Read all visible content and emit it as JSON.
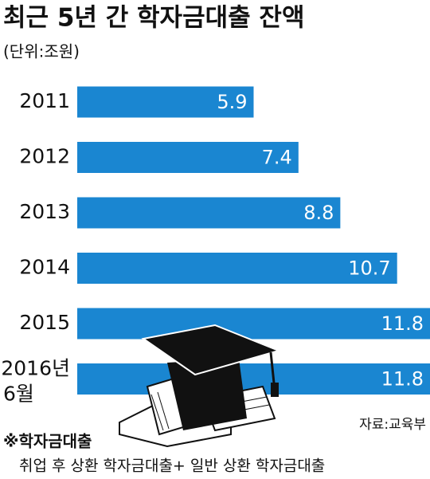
{
  "chart_data": {
    "type": "bar",
    "orientation": "horizontal",
    "title": "최근 5년 간 학자금대출 잔액",
    "subtitle": "(단위:조원)",
    "categories": [
      "2011",
      "2012",
      "2013",
      "2014",
      "2015",
      "2016년 6월"
    ],
    "values": [
      5.9,
      7.4,
      8.8,
      10.7,
      11.8,
      11.8
    ],
    "color": "#1a86d1",
    "source": "자료:교육부",
    "note_title": "※학자금대출",
    "note_text": "취업 후 상환 학자금대출+ 일반 상환 학자금대출"
  }
}
